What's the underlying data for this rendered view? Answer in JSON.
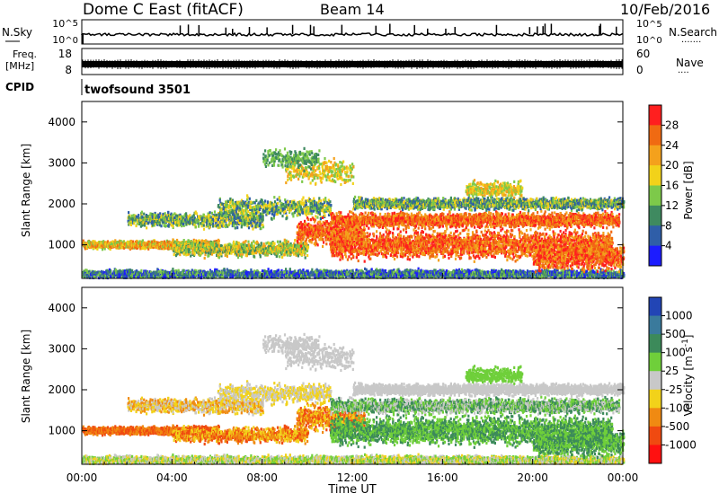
{
  "header": {
    "station": "Dome C East (fitACF)",
    "beam": "Beam 14",
    "date": "10/Feb/2016"
  },
  "side_labels": {
    "nsky": "N.Sky",
    "freq_line1": "Freq.",
    "freq_line2": "[MHz]",
    "cpid": "CPID",
    "nsearch": "N.Search",
    "nave": "Nave",
    "dots": "·······",
    "dots_short": "····"
  },
  "cpid_name": "twofsound 3501",
  "chart_data": [
    {
      "type": "line",
      "name": "noise",
      "yticks_left": [
        "10^5",
        "10^0"
      ],
      "yticks_right": [
        "10^5",
        "10^0"
      ]
    },
    {
      "type": "line",
      "name": "frequency",
      "yticks_left": [
        "18",
        "8"
      ],
      "yticks_right": [
        "60",
        "0"
      ]
    },
    {
      "type": "heatmap",
      "name": "power",
      "ylabel": "Slant Range [km]",
      "yticks": [
        1000,
        2000,
        3000,
        4000
      ],
      "ylim": [
        180,
        4500
      ],
      "xlim_hours": [
        0,
        24
      ],
      "colorbar_label": "Power [dB]",
      "colorbar_ticks": [
        "4",
        "8",
        "12",
        "16",
        "20",
        "24",
        "28"
      ],
      "colorbar_colors": [
        "#1c1cff",
        "#2f5ea8",
        "#3f8a60",
        "#7dc94a",
        "#f2d21a",
        "#f4a11c",
        "#f06a12",
        "#ff1f1f"
      ]
    },
    {
      "type": "heatmap",
      "name": "velocity",
      "ylabel": "Slant Range [km]",
      "yticks": [
        1000,
        2000,
        3000,
        4000
      ],
      "ylim": [
        180,
        4500
      ],
      "xlim_hours": [
        0,
        24
      ],
      "colorbar_label": "Velocity [m s",
      "colorbar_label_sup": "-1",
      "colorbar_label_end": "]",
      "colorbar_ticks": [
        "1000",
        "500",
        "100",
        "25",
        "-25",
        "-100",
        "-500",
        "-1000"
      ],
      "colorbar_colors": [
        "#2245b5",
        "#3a7a9c",
        "#3c8a5a",
        "#6fcf3a",
        "#c8c8c8",
        "#f2d21a",
        "#f08a12",
        "#f04a10",
        "#ff1010"
      ]
    }
  ],
  "xaxis": {
    "ticks": [
      "00:00",
      "04:00",
      "08:00",
      "12:00",
      "16:00",
      "20:00",
      "00:00"
    ],
    "label": "Time UT"
  }
}
